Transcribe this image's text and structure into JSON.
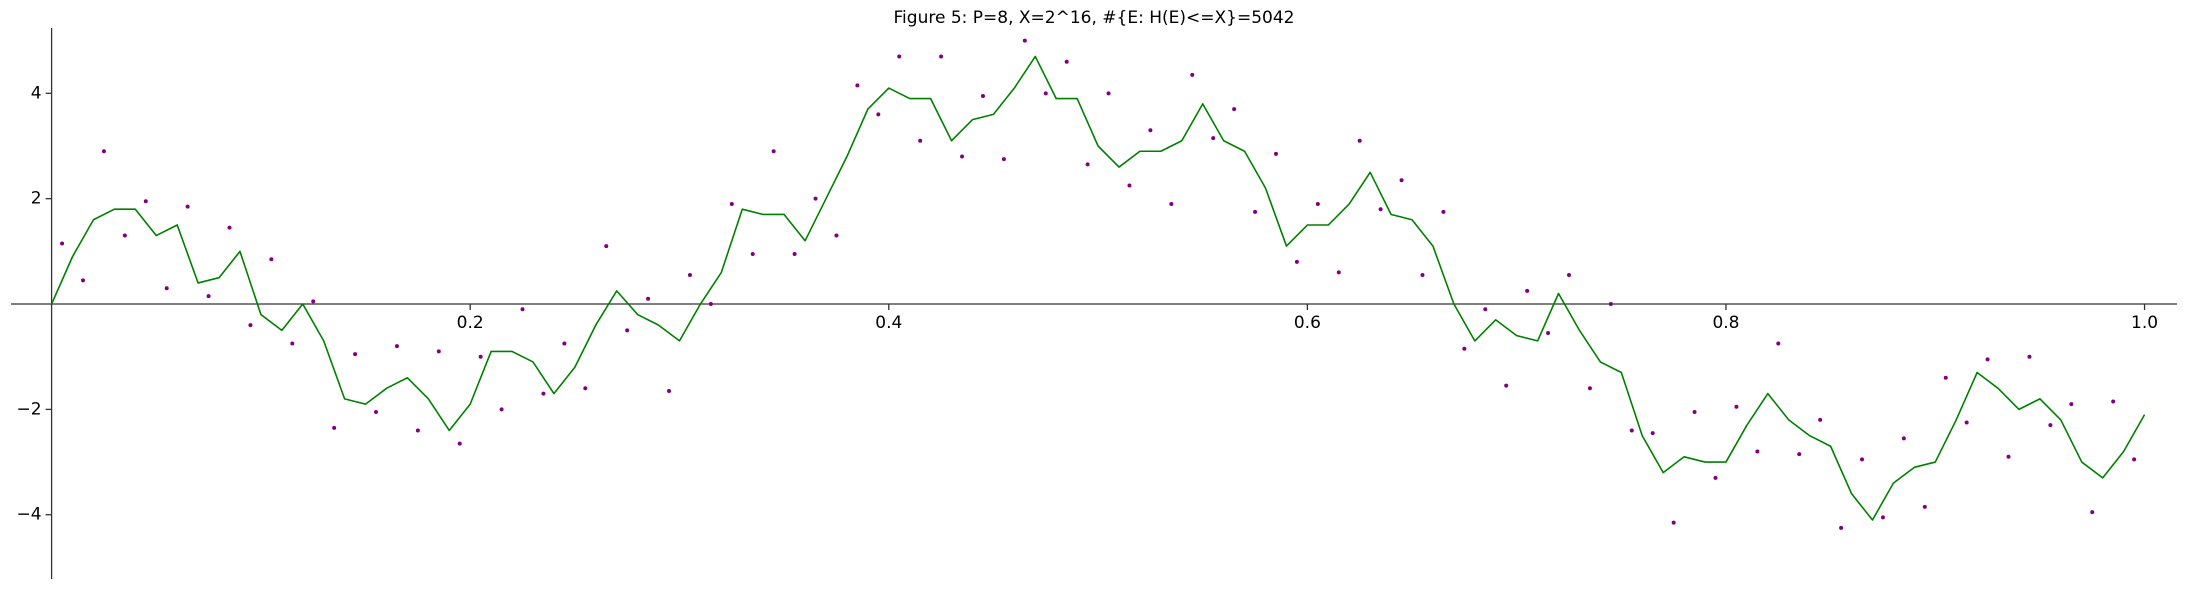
{
  "chart_data": {
    "type": "line",
    "title": "Figure 5: P=8, X=2^16, #{E: H(E)<=X}=5042",
    "xlim": [
      -0.0194,
      1.0155
    ],
    "ylim": [
      -5.22,
      5.24
    ],
    "xticks": [
      0.2,
      0.4,
      0.6,
      0.8,
      {
        "value": 1,
        "label": "1.0"
      }
    ],
    "yticks": [
      {
        "value": -4,
        "label": "−4"
      },
      {
        "value": -2,
        "label": "−2"
      },
      2,
      4
    ],
    "grid": false,
    "series": [
      {
        "type": "line",
        "color": "#008000",
        "x": [
          0,
          0.01,
          0.02,
          0.03,
          0.04,
          0.05,
          0.06,
          0.07,
          0.08,
          0.09,
          0.1,
          0.11,
          0.12,
          0.13,
          0.14,
          0.15,
          0.16,
          0.17,
          0.18,
          0.19,
          0.2,
          0.21,
          0.22,
          0.23,
          0.24,
          0.25,
          0.26,
          0.27,
          0.28,
          0.29,
          0.3,
          0.31,
          0.32,
          0.33,
          0.34,
          0.35,
          0.36,
          0.37,
          0.38,
          0.39,
          0.4,
          0.41,
          0.42,
          0.43,
          0.44,
          0.45,
          0.46,
          0.47,
          0.48,
          0.49,
          0.5,
          0.51,
          0.52,
          0.53,
          0.54,
          0.55,
          0.56,
          0.57,
          0.58,
          0.59,
          0.6,
          0.61,
          0.62,
          0.63,
          0.64,
          0.65,
          0.66,
          0.67,
          0.68,
          0.69,
          0.7,
          0.71,
          0.72,
          0.73,
          0.74,
          0.75,
          0.76,
          0.77,
          0.78,
          0.79,
          0.8,
          0.81,
          0.82,
          0.83,
          0.84,
          0.85,
          0.86,
          0.87,
          0.88,
          0.89,
          0.9,
          0.91,
          0.92,
          0.93,
          0.94,
          0.95,
          0.96,
          0.97,
          0.98,
          0.99,
          1
        ],
        "values": [
          0,
          0.9,
          1.6,
          1.8,
          1.8,
          1.3,
          1.5,
          0.4,
          0.5,
          1.0,
          -0.2,
          -0.5,
          0.0,
          -0.7,
          -1.8,
          -1.9,
          -1.6,
          -1.4,
          -1.8,
          -2.4,
          -1.9,
          -0.9,
          -0.9,
          -1.1,
          -1.7,
          -1.2,
          -0.4,
          0.25,
          -0.2,
          -0.4,
          -0.7,
          0.0,
          0.6,
          1.8,
          1.7,
          1.7,
          1.2,
          2.0,
          2.8,
          3.7,
          4.1,
          3.9,
          3.9,
          3.1,
          3.5,
          3.6,
          4.1,
          4.7,
          3.9,
          3.9,
          3.0,
          2.6,
          2.9,
          2.9,
          3.1,
          3.8,
          3.1,
          2.9,
          2.2,
          1.1,
          1.5,
          1.5,
          1.9,
          2.5,
          1.7,
          1.6,
          1.1,
          0.0,
          -0.7,
          -0.3,
          -0.6,
          -0.7,
          0.2,
          -0.5,
          -1.1,
          -1.3,
          -2.5,
          -3.2,
          -2.9,
          -3.0,
          -3.0,
          -2.3,
          -1.7,
          -2.2,
          -2.5,
          -2.7,
          -3.6,
          -4.1,
          -3.4,
          -3.1,
          -3.0,
          -2.2,
          -1.3,
          -1.6,
          -2.0,
          -1.8,
          -2.2,
          -3.0,
          -3.3,
          -2.8,
          -2.1
        ]
      },
      {
        "type": "scatter",
        "color": "#800080",
        "x": [
          0.005,
          0.015,
          0.025,
          0.035,
          0.045,
          0.055,
          0.065,
          0.075,
          0.085,
          0.095,
          0.105,
          0.115,
          0.125,
          0.135,
          0.145,
          0.155,
          0.165,
          0.175,
          0.185,
          0.195,
          0.205,
          0.215,
          0.225,
          0.235,
          0.245,
          0.255,
          0.265,
          0.275,
          0.285,
          0.295,
          0.305,
          0.315,
          0.325,
          0.335,
          0.345,
          0.355,
          0.365,
          0.375,
          0.385,
          0.395,
          0.405,
          0.415,
          0.425,
          0.435,
          0.445,
          0.455,
          0.465,
          0.475,
          0.485,
          0.495,
          0.505,
          0.515,
          0.525,
          0.535,
          0.545,
          0.555,
          0.565,
          0.575,
          0.585,
          0.595,
          0.605,
          0.615,
          0.625,
          0.635,
          0.645,
          0.655,
          0.665,
          0.675,
          0.685,
          0.695,
          0.705,
          0.715,
          0.725,
          0.735,
          0.745,
          0.755,
          0.765,
          0.775,
          0.785,
          0.795,
          0.805,
          0.815,
          0.825,
          0.835,
          0.845,
          0.855,
          0.865,
          0.875,
          0.885,
          0.895,
          0.905,
          0.915,
          0.925,
          0.935,
          0.945,
          0.955,
          0.965,
          0.975,
          0.985,
          0.995
        ],
        "values": [
          1.15,
          0.45,
          2.9,
          1.3,
          1.95,
          0.3,
          1.85,
          0.15,
          1.45,
          -0.4,
          0.85,
          -0.75,
          0.05,
          -2.35,
          -0.95,
          -2.05,
          -0.8,
          -2.4,
          -0.9,
          -2.65,
          -1.0,
          -2.0,
          -0.1,
          -1.7,
          -0.75,
          -1.6,
          1.1,
          -0.5,
          0.1,
          -1.65,
          0.55,
          0.0,
          1.9,
          0.95,
          2.9,
          0.95,
          2.0,
          1.3,
          4.15,
          3.6,
          4.7,
          3.1,
          4.7,
          2.8,
          3.95,
          2.75,
          5.0,
          4.0,
          4.6,
          2.65,
          4.0,
          2.25,
          3.3,
          1.9,
          4.35,
          3.15,
          3.7,
          1.75,
          2.85,
          0.8,
          1.9,
          0.6,
          3.1,
          1.8,
          2.35,
          0.55,
          1.75,
          -0.85,
          -0.1,
          -1.55,
          0.25,
          -0.55,
          0.55,
          -1.6,
          0.0,
          -2.4,
          -2.45,
          -4.15,
          -2.05,
          -3.3,
          -1.95,
          -2.8,
          -0.75,
          -2.85,
          -2.2,
          -4.25,
          -2.95,
          -4.05,
          -2.55,
          -3.85,
          -1.4,
          -2.25,
          -1.05,
          -2.9,
          -1.0,
          -2.3,
          -1.9,
          -3.95,
          -1.85,
          -2.95
        ]
      }
    ]
  }
}
